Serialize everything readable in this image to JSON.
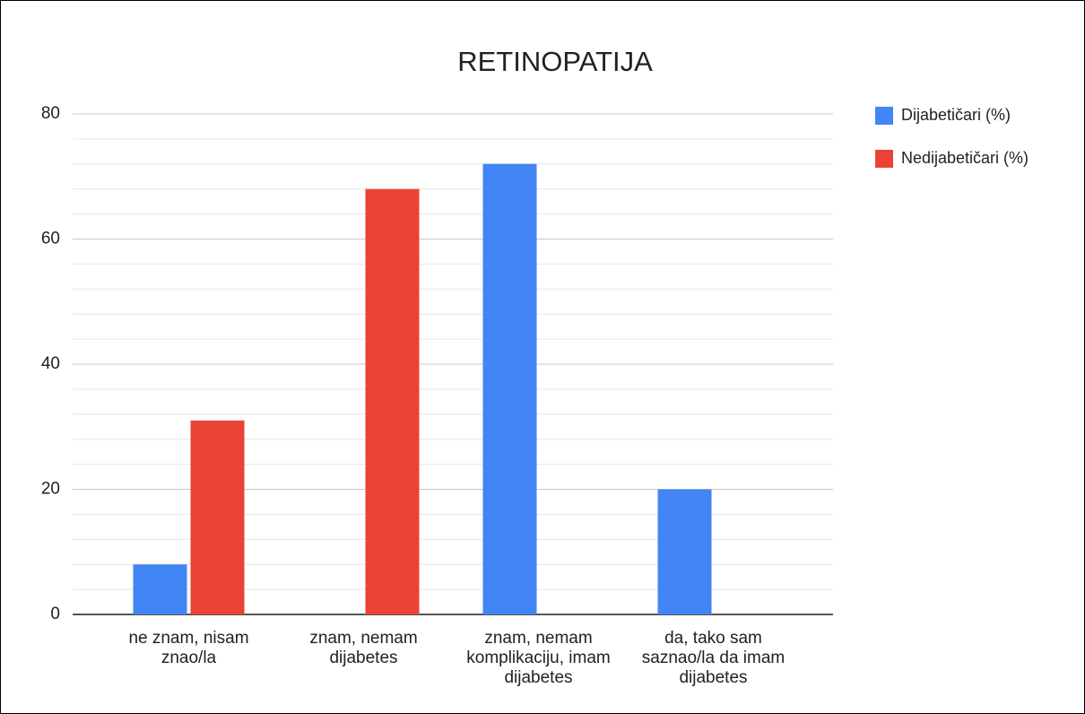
{
  "chart_data": {
    "type": "bar",
    "title": "RETINOPATIJA",
    "categories": [
      "ne znam, nisam znao/la",
      "znam, nemam dijabetes",
      "znam, nemam komplikaciju, imam dijabetes",
      "da, tako sam saznao/la da imam dijabetes"
    ],
    "series": [
      {
        "name": "Dijabetičari (%)",
        "color": "#4285f4",
        "values": [
          8,
          0,
          72,
          20
        ]
      },
      {
        "name": "Nedijabetičari (%)",
        "color": "#ea4335",
        "values": [
          31,
          68,
          0,
          0
        ]
      }
    ],
    "ylim": [
      0,
      80
    ],
    "yticks": [
      0,
      20,
      40,
      60,
      80
    ],
    "yminorticks": [
      4,
      8,
      12,
      16,
      24,
      28,
      32,
      36,
      44,
      48,
      52,
      56,
      64,
      68,
      72,
      76
    ],
    "grid": true,
    "legend": "right"
  }
}
